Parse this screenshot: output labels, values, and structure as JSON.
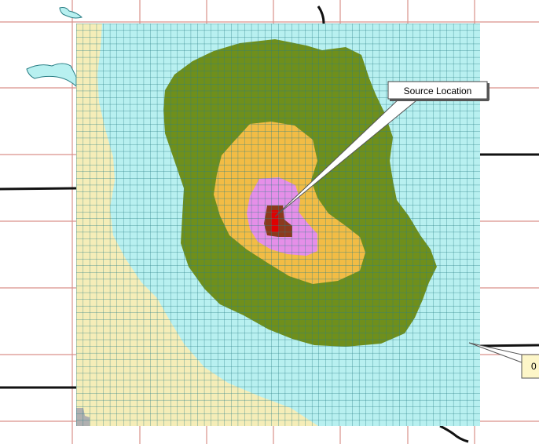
{
  "colors": {
    "reference_grid": "#d9918a",
    "cell_lines": "#2a7f86",
    "background_zone": "#b8f0f0",
    "left_zone": "#f5edb8",
    "corner_zone": "#b0b0b0",
    "outer_plume": "#6f8f1c",
    "middle_plume": "#f2bc45",
    "inner_plume": "#e58fe8",
    "source_zone": "#8c3a1c",
    "source_marker": "#e00000",
    "roads": "#111111",
    "water": "#b8f0f0"
  },
  "map": {
    "source_label": "Source Location",
    "edge_label": "0"
  }
}
